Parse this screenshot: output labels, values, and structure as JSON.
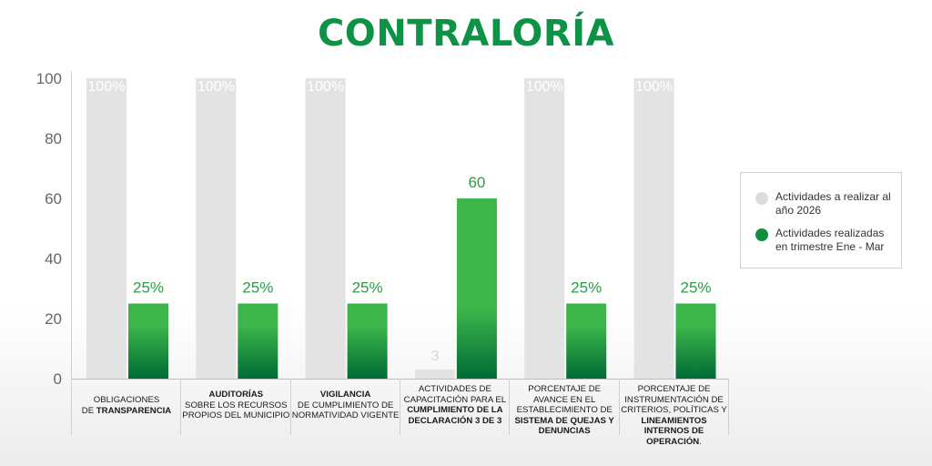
{
  "header": {
    "title": "CONTRALORÍA"
  },
  "chart_data": {
    "type": "bar",
    "title": "CONTRALORÍA",
    "xlabel": "",
    "ylabel": "",
    "ylim": [
      0,
      100
    ],
    "yticks": [
      0,
      20,
      40,
      60,
      80,
      100
    ],
    "grid": false,
    "legend_position": "right",
    "categories": [
      {
        "parts": [
          {
            "t": "Obligaciones",
            "b": false
          },
          {
            "br": true
          },
          {
            "t": "de ",
            "b": false
          },
          {
            "t": "Transparencia",
            "b": true
          }
        ]
      },
      {
        "parts": [
          {
            "t": "Auditorías",
            "b": true
          },
          {
            "br": true
          },
          {
            "t": "sobre los recursos",
            "b": false
          },
          {
            "br": true
          },
          {
            "t": "propios del municipio",
            "b": false
          }
        ]
      },
      {
        "parts": [
          {
            "t": "Vigilancia",
            "b": true
          },
          {
            "br": true
          },
          {
            "t": "de cumplimiento de",
            "b": false
          },
          {
            "br": true
          },
          {
            "t": "normatividad vigente",
            "b": false
          }
        ]
      },
      {
        "parts": [
          {
            "t": "Actividades de",
            "b": false
          },
          {
            "br": true
          },
          {
            "t": "capacitación para el",
            "b": false
          },
          {
            "br": true
          },
          {
            "t": "cumplimiento de la",
            "b": true
          },
          {
            "br": true
          },
          {
            "t": "declaración 3 de 3",
            "b": true
          }
        ]
      },
      {
        "parts": [
          {
            "t": "Porcentaje de",
            "b": false
          },
          {
            "br": true
          },
          {
            "t": "avance en el",
            "b": false
          },
          {
            "br": true
          },
          {
            "t": "establecimiento de",
            "b": false
          },
          {
            "br": true
          },
          {
            "t": "sistema de quejas y",
            "b": true
          },
          {
            "br": true
          },
          {
            "t": "denuncias",
            "b": true
          }
        ]
      },
      {
        "parts": [
          {
            "t": "Porcentaje de",
            "b": false
          },
          {
            "br": true
          },
          {
            "t": "instrumentación de",
            "b": false
          },
          {
            "br": true
          },
          {
            "t": "criterios, políticas y",
            "b": false
          },
          {
            "br": true
          },
          {
            "t": "lineamientos",
            "b": true
          },
          {
            "br": true
          },
          {
            "t": "internos de",
            "b": true
          },
          {
            "br": true
          },
          {
            "t": "operación",
            "b": true
          },
          {
            "t": ".",
            "b": false
          }
        ]
      }
    ],
    "series": [
      {
        "name": "Actividades a realizar al año 2026",
        "color": "#e3e3e3",
        "values": [
          100,
          100,
          100,
          3,
          100,
          100
        ],
        "labels": [
          "100%",
          "100%",
          "100%",
          "3",
          "100%",
          "100%"
        ]
      },
      {
        "name": "Actividades realizadas en trimestre Ene - Mar",
        "color": "#3cb54a",
        "color_dark": "#006b35",
        "values": [
          25,
          25,
          25,
          60,
          25,
          25
        ],
        "labels": [
          "25%",
          "25%",
          "25%",
          "60",
          "25%",
          "25%"
        ]
      }
    ]
  }
}
